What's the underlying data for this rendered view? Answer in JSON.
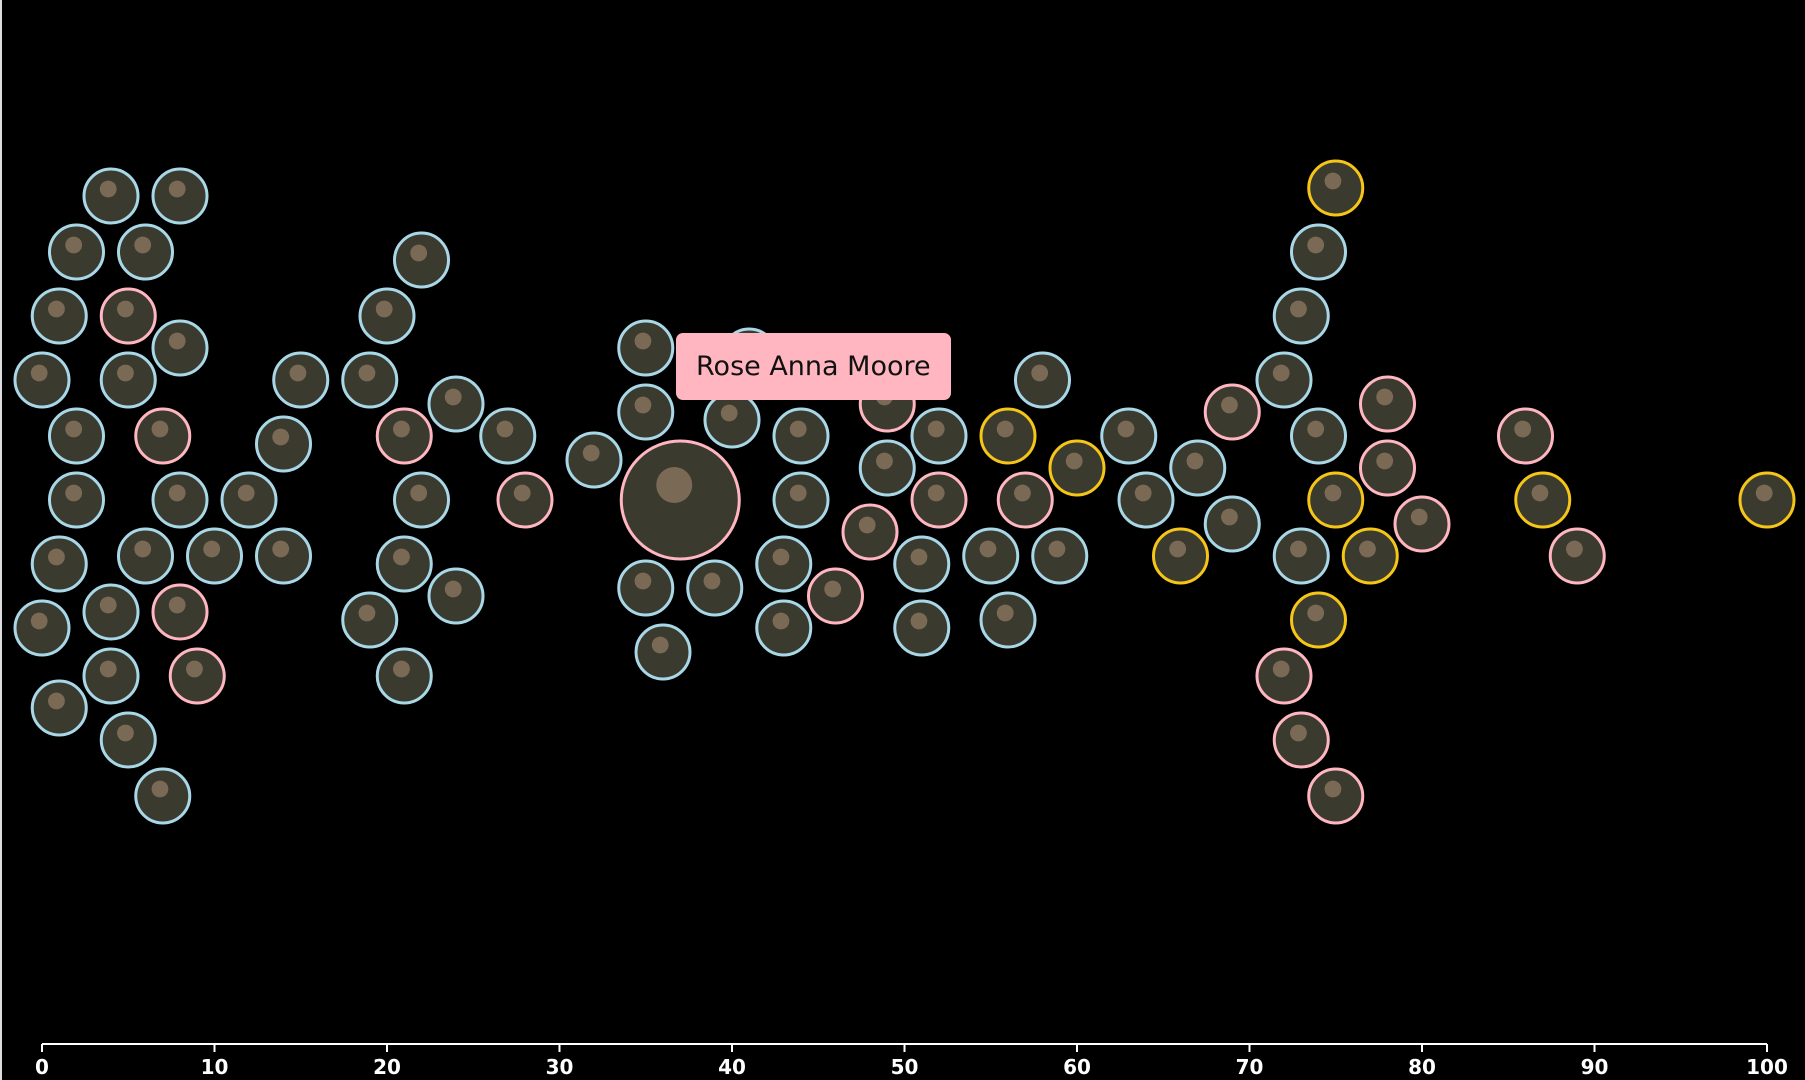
{
  "colors": {
    "background": "#000000",
    "male": "#a8d8e8",
    "female": "#ffb6c1",
    "winner": "#f5c518",
    "axis": "#ffffff"
  },
  "tooltip": {
    "name": "Rose Anna Moore"
  },
  "chart_data": {
    "type": "scatter",
    "title": "",
    "xlabel": "",
    "ylabel": "",
    "xlim": [
      0,
      100
    ],
    "x_ticks": [
      0,
      10,
      20,
      30,
      40,
      50,
      60,
      70,
      80,
      90,
      100
    ],
    "grid": false,
    "legend": "none",
    "series": [
      {
        "points": [
          {
            "x": 8,
            "c": "male"
          },
          {
            "x": 2,
            "c": "male"
          },
          {
            "x": 7,
            "c": "female"
          },
          {
            "x": 2,
            "c": "male"
          },
          {
            "x": 6,
            "c": "male"
          },
          {
            "x": 1,
            "c": "male"
          },
          {
            "x": 5,
            "c": "male"
          },
          {
            "x": 10,
            "c": "male"
          },
          {
            "x": 0,
            "c": "male"
          },
          {
            "x": 4,
            "c": "male"
          },
          {
            "x": 8,
            "c": "female"
          },
          {
            "x": 0,
            "c": "male"
          },
          {
            "x": 4,
            "c": "male"
          },
          {
            "x": 8,
            "c": "male"
          },
          {
            "x": 1,
            "c": "male"
          },
          {
            "x": 5,
            "c": "female"
          },
          {
            "x": 9,
            "c": "female"
          },
          {
            "x": 1,
            "c": "male"
          },
          {
            "x": 5,
            "c": "male"
          },
          {
            "x": 2,
            "c": "male"
          },
          {
            "x": 6,
            "c": "male"
          },
          {
            "x": 4,
            "c": "male"
          },
          {
            "x": 7,
            "c": "male"
          },
          {
            "x": 8,
            "c": "male"
          },
          {
            "x": 12,
            "c": "male"
          },
          {
            "x": 14,
            "c": "male"
          },
          {
            "x": 14,
            "c": "male"
          },
          {
            "x": 15,
            "c": "male"
          },
          {
            "x": 22,
            "c": "male"
          },
          {
            "x": 21,
            "c": "female"
          },
          {
            "x": 21,
            "c": "male"
          },
          {
            "x": 19,
            "c": "male"
          },
          {
            "x": 24,
            "c": "male"
          },
          {
            "x": 19,
            "c": "male"
          },
          {
            "x": 24,
            "c": "male"
          },
          {
            "x": 28,
            "c": "female"
          },
          {
            "x": 20,
            "c": "male"
          },
          {
            "x": 27,
            "c": "male"
          },
          {
            "x": 21,
            "c": "male"
          },
          {
            "x": 22,
            "c": "male"
          },
          {
            "x": 32,
            "c": "male"
          },
          {
            "x": 35,
            "c": "male"
          },
          {
            "x": 35,
            "c": "male"
          },
          {
            "x": 35,
            "c": "male"
          },
          {
            "x": 36,
            "c": "male"
          },
          {
            "x": 37,
            "c": "female",
            "hover": true
          },
          {
            "x": 44,
            "c": "male"
          },
          {
            "x": 40,
            "c": "male"
          },
          {
            "x": 39,
            "c": "male"
          },
          {
            "x": 43,
            "c": "male"
          },
          {
            "x": 41,
            "c": "male"
          },
          {
            "x": 43,
            "c": "male"
          },
          {
            "x": 44,
            "c": "male"
          },
          {
            "x": 52,
            "c": "female"
          },
          {
            "x": 49,
            "c": "male"
          },
          {
            "x": 48,
            "c": "female"
          },
          {
            "x": 46,
            "c": "female"
          },
          {
            "x": 52,
            "c": "male"
          },
          {
            "x": 51,
            "c": "male"
          },
          {
            "x": 49,
            "c": "female"
          },
          {
            "x": 51,
            "c": "male"
          },
          {
            "x": 57,
            "c": "female"
          },
          {
            "x": 56,
            "c": "winner"
          },
          {
            "x": 55,
            "c": "male"
          },
          {
            "x": 59,
            "c": "male"
          },
          {
            "x": 56,
            "c": "male"
          },
          {
            "x": 60,
            "c": "winner"
          },
          {
            "x": 58,
            "c": "male"
          },
          {
            "x": 64,
            "c": "male"
          },
          {
            "x": 63,
            "c": "male"
          },
          {
            "x": 67,
            "c": "male"
          },
          {
            "x": 69,
            "c": "male"
          },
          {
            "x": 66,
            "c": "winner"
          },
          {
            "x": 69,
            "c": "female"
          },
          {
            "x": 75,
            "c": "winner"
          },
          {
            "x": 74,
            "c": "male"
          },
          {
            "x": 73,
            "c": "male"
          },
          {
            "x": 72,
            "c": "male"
          },
          {
            "x": 74,
            "c": "winner"
          },
          {
            "x": 72,
            "c": "female"
          },
          {
            "x": 73,
            "c": "male"
          },
          {
            "x": 73,
            "c": "female"
          },
          {
            "x": 74,
            "c": "male"
          },
          {
            "x": 75,
            "c": "female"
          },
          {
            "x": 75,
            "c": "winner"
          },
          {
            "x": 78,
            "c": "female"
          },
          {
            "x": 77,
            "c": "winner"
          },
          {
            "x": 78,
            "c": "female"
          },
          {
            "x": 80,
            "c": "female"
          },
          {
            "x": 87,
            "c": "winner"
          },
          {
            "x": 86,
            "c": "female"
          },
          {
            "x": 89,
            "c": "female"
          },
          {
            "x": 100,
            "c": "winner"
          }
        ]
      }
    ]
  }
}
